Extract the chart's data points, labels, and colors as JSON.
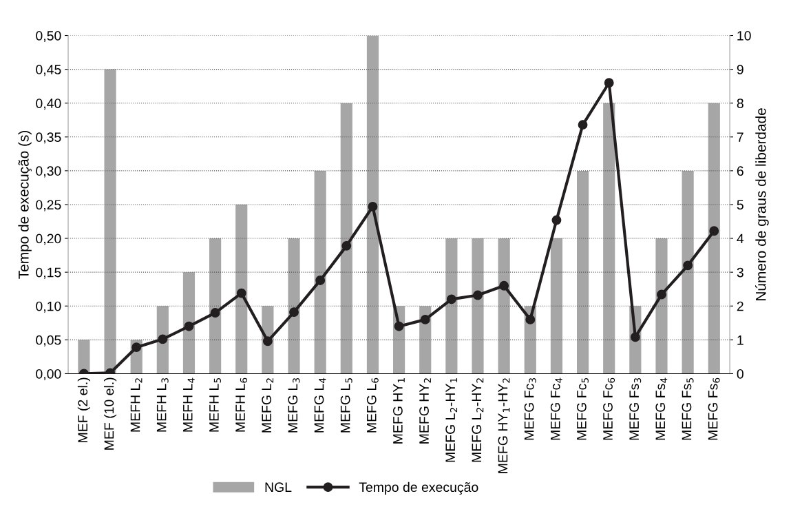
{
  "chart_data": {
    "type": "bar",
    "ylabel": "Tempo de execução (s)",
    "y2label": "Número de graus de liberdade",
    "categories": [
      "MEF (2 el.)",
      "MEF (10 el.)",
      "MEFH L$_{2}$",
      "MEFH L$_{3}$",
      "MEFH L$_{4}$",
      "MEFH L$_{5}$",
      "MEFH L$_{6}$",
      "MEFG L$_{2}$",
      "MEFG L$_{3}$",
      "MEFG L$_{4}$",
      "MEFG L$_{5}$",
      "MEFG L$_{6}$",
      "MEFG HY$_{1}$",
      "MEFG HY$_{2}$",
      "MEFG L$_{2}$-HY$_{1}$",
      "MEFG L$_{2}$-HY$_{2}$",
      "MEFG HY$_{1}$-HY$_{2}$",
      "MEFG Fc$_{3}$",
      "MEFG Fc$_{4}$",
      "MEFG Fc$_{5}$",
      "MEFG Fc$_{6}$",
      "MEFG Fs$_{3}$",
      "MEFG Fs$_{4}$",
      "MEFG Fs$_{5}$",
      "MEFG Fs$_{6}$"
    ],
    "series": [
      {
        "name": "NGL",
        "axis": "y2",
        "color": "#a6a6a6",
        "values": [
          1,
          9,
          1,
          2,
          3,
          4,
          5,
          2,
          4,
          6,
          8,
          10,
          2,
          2,
          4,
          4,
          4,
          2,
          4,
          6,
          8,
          2,
          4,
          6,
          8
        ]
      },
      {
        "name": "Tempo de execução",
        "type": "line",
        "color": "#231f20",
        "marker": "circle",
        "values": [
          0.0,
          0.001,
          0.039,
          0.051,
          0.07,
          0.09,
          0.119,
          0.048,
          0.091,
          0.138,
          0.189,
          0.247,
          0.07,
          0.08,
          0.11,
          0.116,
          0.13,
          0.08,
          0.227,
          0.368,
          0.43,
          0.054,
          0.117,
          0.16,
          0.211
        ]
      }
    ],
    "ylim": [
      0,
      0.5
    ],
    "yticks": [
      {
        "value": 0,
        "label": "0,00"
      },
      {
        "value": 0.05,
        "label": "0,05"
      },
      {
        "value": 0.1,
        "label": "0,10"
      },
      {
        "value": 0.15,
        "label": "0,15"
      },
      {
        "value": 0.2,
        "label": "0,20"
      },
      {
        "value": 0.25,
        "label": "0,25"
      },
      {
        "value": 0.3,
        "label": "0,30"
      },
      {
        "value": 0.35,
        "label": "0,35"
      },
      {
        "value": 0.4,
        "label": "0,40"
      },
      {
        "value": 0.45,
        "label": "0,45"
      },
      {
        "value": 0.5,
        "label": "0,50"
      }
    ],
    "y2lim": [
      0,
      10
    ],
    "y2ticks": [
      0,
      1,
      2,
      3,
      4,
      5,
      6,
      7,
      8,
      9,
      10
    ],
    "grid": "y",
    "legend": "bottom",
    "line_style": "solid"
  }
}
